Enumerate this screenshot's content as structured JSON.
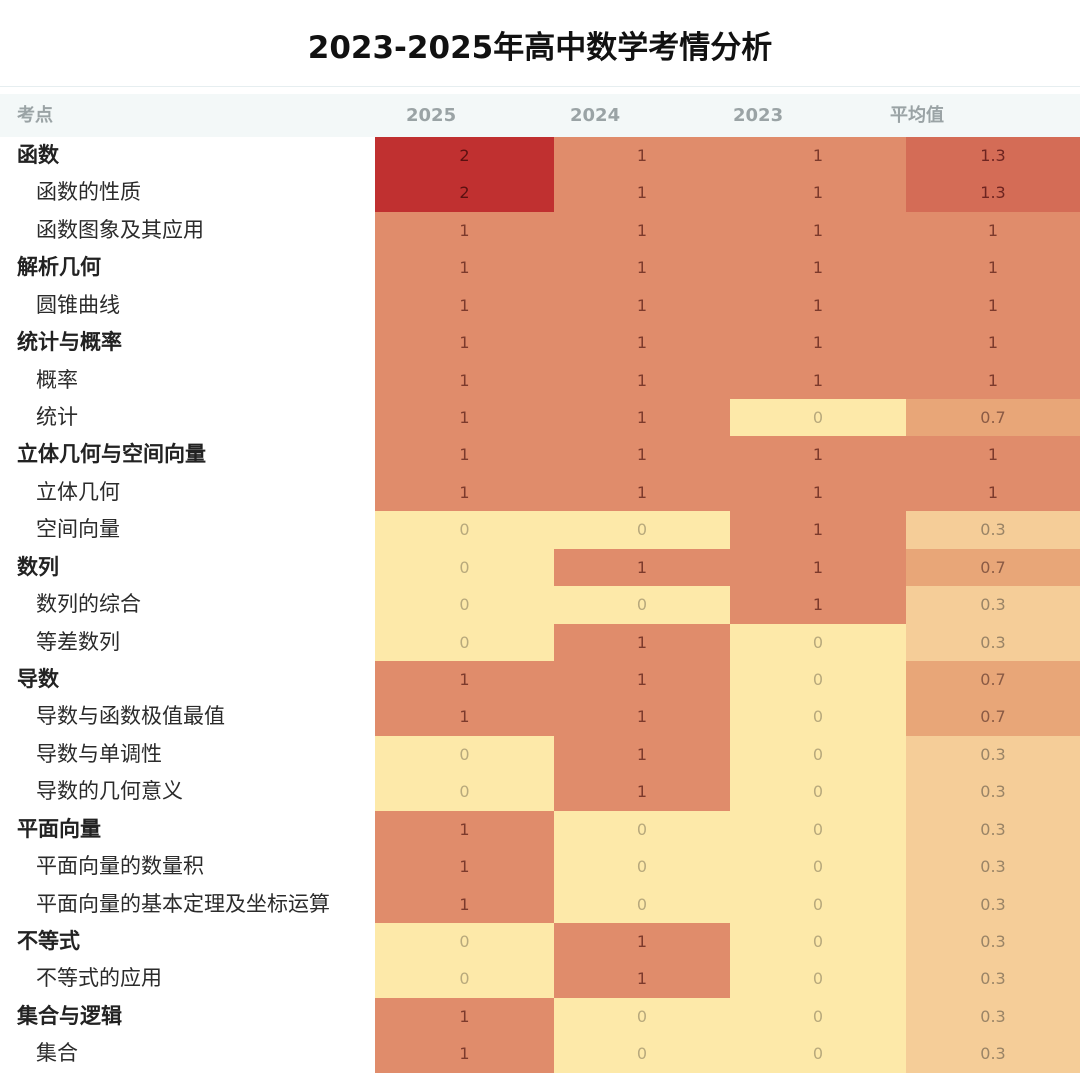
{
  "title": "2023-2025年高中数学考情分析",
  "chart_data": {
    "type": "heatmap",
    "title": "2023-2025年高中数学考情分析",
    "row_header": "考点",
    "columns": [
      "2025",
      "2024",
      "2023",
      "平均值"
    ],
    "rows": [
      {
        "label": "函数",
        "level": 0,
        "values": [
          "2",
          "1",
          "1",
          "1.3"
        ]
      },
      {
        "label": "函数的性质",
        "level": 1,
        "values": [
          "2",
          "1",
          "1",
          "1.3"
        ]
      },
      {
        "label": "函数图象及其应用",
        "level": 1,
        "values": [
          "1",
          "1",
          "1",
          "1"
        ]
      },
      {
        "label": "解析几何",
        "level": 0,
        "values": [
          "1",
          "1",
          "1",
          "1"
        ]
      },
      {
        "label": "圆锥曲线",
        "level": 1,
        "values": [
          "1",
          "1",
          "1",
          "1"
        ]
      },
      {
        "label": "统计与概率",
        "level": 0,
        "values": [
          "1",
          "1",
          "1",
          "1"
        ]
      },
      {
        "label": "概率",
        "level": 1,
        "values": [
          "1",
          "1",
          "1",
          "1"
        ]
      },
      {
        "label": "统计",
        "level": 1,
        "values": [
          "1",
          "1",
          "0",
          "0.7"
        ]
      },
      {
        "label": "立体几何与空间向量",
        "level": 0,
        "values": [
          "1",
          "1",
          "1",
          "1"
        ]
      },
      {
        "label": "立体几何",
        "level": 1,
        "values": [
          "1",
          "1",
          "1",
          "1"
        ]
      },
      {
        "label": "空间向量",
        "level": 1,
        "values": [
          "0",
          "0",
          "1",
          "0.3"
        ]
      },
      {
        "label": "数列",
        "level": 0,
        "values": [
          "0",
          "1",
          "1",
          "0.7"
        ]
      },
      {
        "label": "数列的综合",
        "level": 1,
        "values": [
          "0",
          "0",
          "1",
          "0.3"
        ]
      },
      {
        "label": "等差数列",
        "level": 1,
        "values": [
          "0",
          "1",
          "0",
          "0.3"
        ]
      },
      {
        "label": "导数",
        "level": 0,
        "values": [
          "1",
          "1",
          "0",
          "0.7"
        ]
      },
      {
        "label": "导数与函数极值最值",
        "level": 1,
        "values": [
          "1",
          "1",
          "0",
          "0.7"
        ]
      },
      {
        "label": "导数与单调性",
        "level": 1,
        "values": [
          "0",
          "1",
          "0",
          "0.3"
        ]
      },
      {
        "label": "导数的几何意义",
        "level": 1,
        "values": [
          "0",
          "1",
          "0",
          "0.3"
        ]
      },
      {
        "label": "平面向量",
        "level": 0,
        "values": [
          "1",
          "0",
          "0",
          "0.3"
        ]
      },
      {
        "label": "平面向量的数量积",
        "level": 1,
        "values": [
          "1",
          "0",
          "0",
          "0.3"
        ]
      },
      {
        "label": "平面向量的基本定理及坐标运算",
        "level": 1,
        "values": [
          "1",
          "0",
          "0",
          "0.3"
        ]
      },
      {
        "label": "不等式",
        "level": 0,
        "values": [
          "0",
          "1",
          "0",
          "0.3"
        ]
      },
      {
        "label": "不等式的应用",
        "level": 1,
        "values": [
          "0",
          "1",
          "0",
          "0.3"
        ]
      },
      {
        "label": "集合与逻辑",
        "level": 0,
        "values": [
          "1",
          "0",
          "0",
          "0.3"
        ]
      },
      {
        "label": "集合",
        "level": 1,
        "values": [
          "1",
          "0",
          "0",
          "0.3"
        ]
      }
    ],
    "color_scale": [
      {
        "value": 0,
        "fill": "#fde9a9",
        "text": "#b8a97c"
      },
      {
        "value": 0.3,
        "fill": "#f5cd98",
        "text": "#9a8466"
      },
      {
        "value": 0.7,
        "fill": "#e8a678",
        "text": "#8a5a44"
      },
      {
        "value": 1,
        "fill": "#e08c6b",
        "text": "#7c3a2c"
      },
      {
        "value": 1.3,
        "fill": "#d46c56",
        "text": "#6e2420"
      },
      {
        "value": 2,
        "fill": "#c03030",
        "text": "#5a1010"
      }
    ]
  }
}
